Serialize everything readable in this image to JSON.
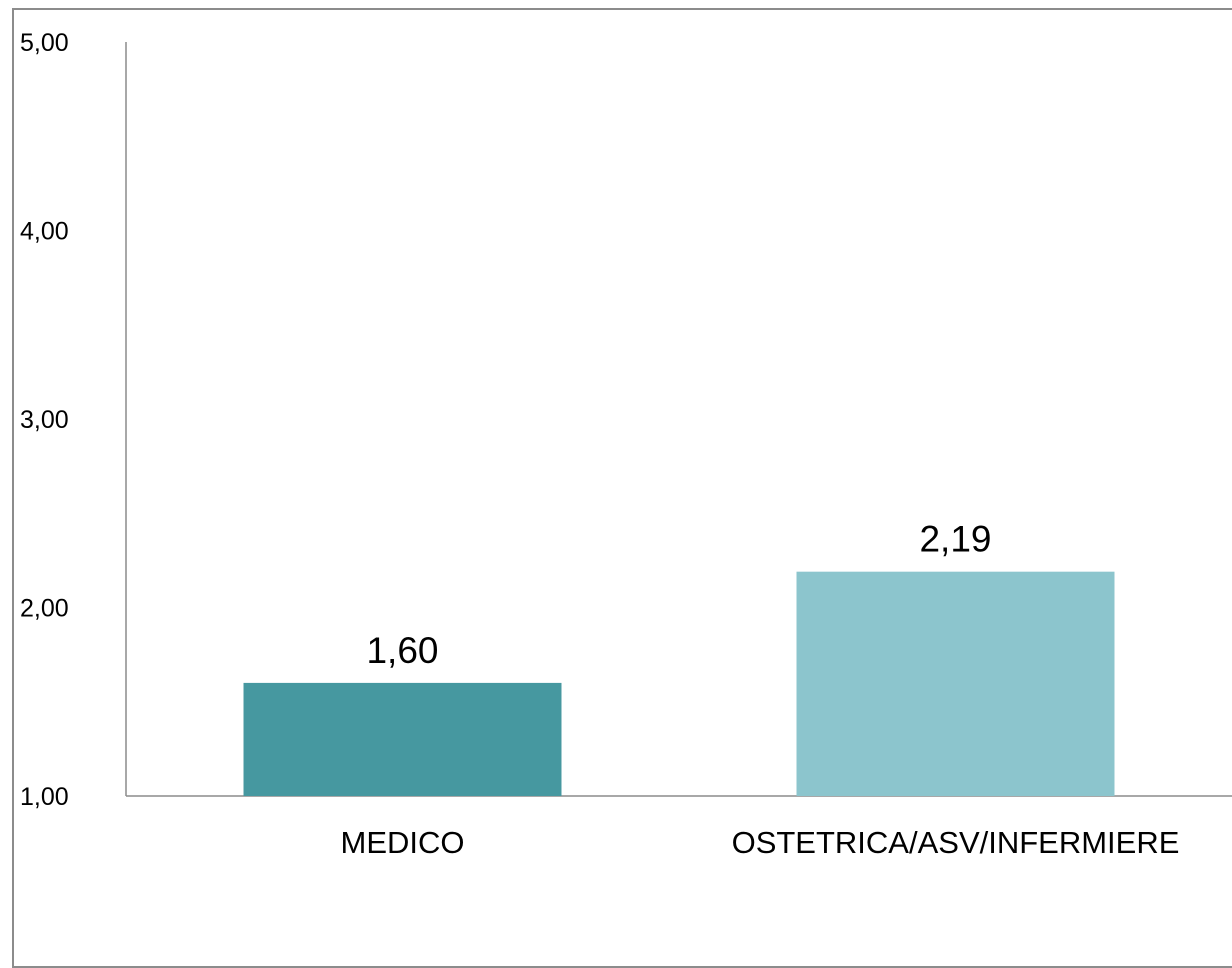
{
  "chart_data": {
    "type": "bar",
    "categories": [
      "MEDICO",
      "OSTETRICA/ASV/INFERMIERE"
    ],
    "values": [
      1.6,
      2.19
    ],
    "value_labels": [
      "1,60",
      "2,19"
    ],
    "bar_colors": [
      "#4698a0",
      "#8cc5cd"
    ],
    "title": "",
    "xlabel": "",
    "ylabel": "",
    "ylim": [
      1.0,
      5.0
    ],
    "y_ticks": [
      1.0,
      2.0,
      3.0,
      4.0,
      5.0
    ],
    "y_tick_labels": [
      "1,00",
      "2,00",
      "3,00",
      "4,00",
      "5,00"
    ],
    "grid": false,
    "legend": "none",
    "axis_color": "#8c8c8c"
  }
}
